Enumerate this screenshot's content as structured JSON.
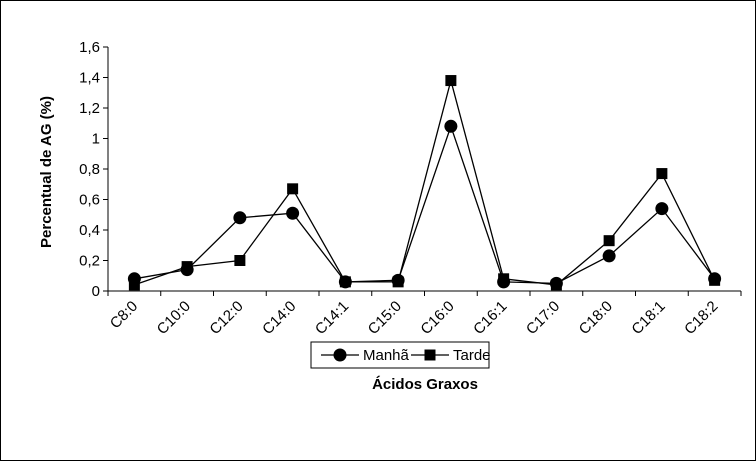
{
  "chart_data": {
    "type": "line",
    "title": "",
    "xlabel": "Ácidos Graxos",
    "ylabel": "Percentual de AG (%)",
    "ylim": [
      0,
      1.6
    ],
    "yticks": [
      "0",
      "0,2",
      "0,4",
      "0,6",
      "0,8",
      "1",
      "1,2",
      "1,4",
      "1,6"
    ],
    "categories": [
      "C8:0",
      "C10:0",
      "C12:0",
      "C14:0",
      "C14:1",
      "C15:0",
      "C16:0",
      "C16:1",
      "C17:0",
      "C18:0",
      "C18:1",
      "C18:2"
    ],
    "series": [
      {
        "name": "Manhã",
        "marker": "circle",
        "color": "#000000",
        "values": [
          0.08,
          0.14,
          0.48,
          0.51,
          0.06,
          0.07,
          1.08,
          0.06,
          0.05,
          0.23,
          0.54,
          0.08
        ]
      },
      {
        "name": "Tarde",
        "marker": "square",
        "color": "#000000",
        "values": [
          0.04,
          0.16,
          0.2,
          0.67,
          0.06,
          0.06,
          1.38,
          0.08,
          0.04,
          0.33,
          0.77,
          0.07
        ]
      }
    ],
    "grid": false,
    "legend_position": "bottom-right"
  }
}
